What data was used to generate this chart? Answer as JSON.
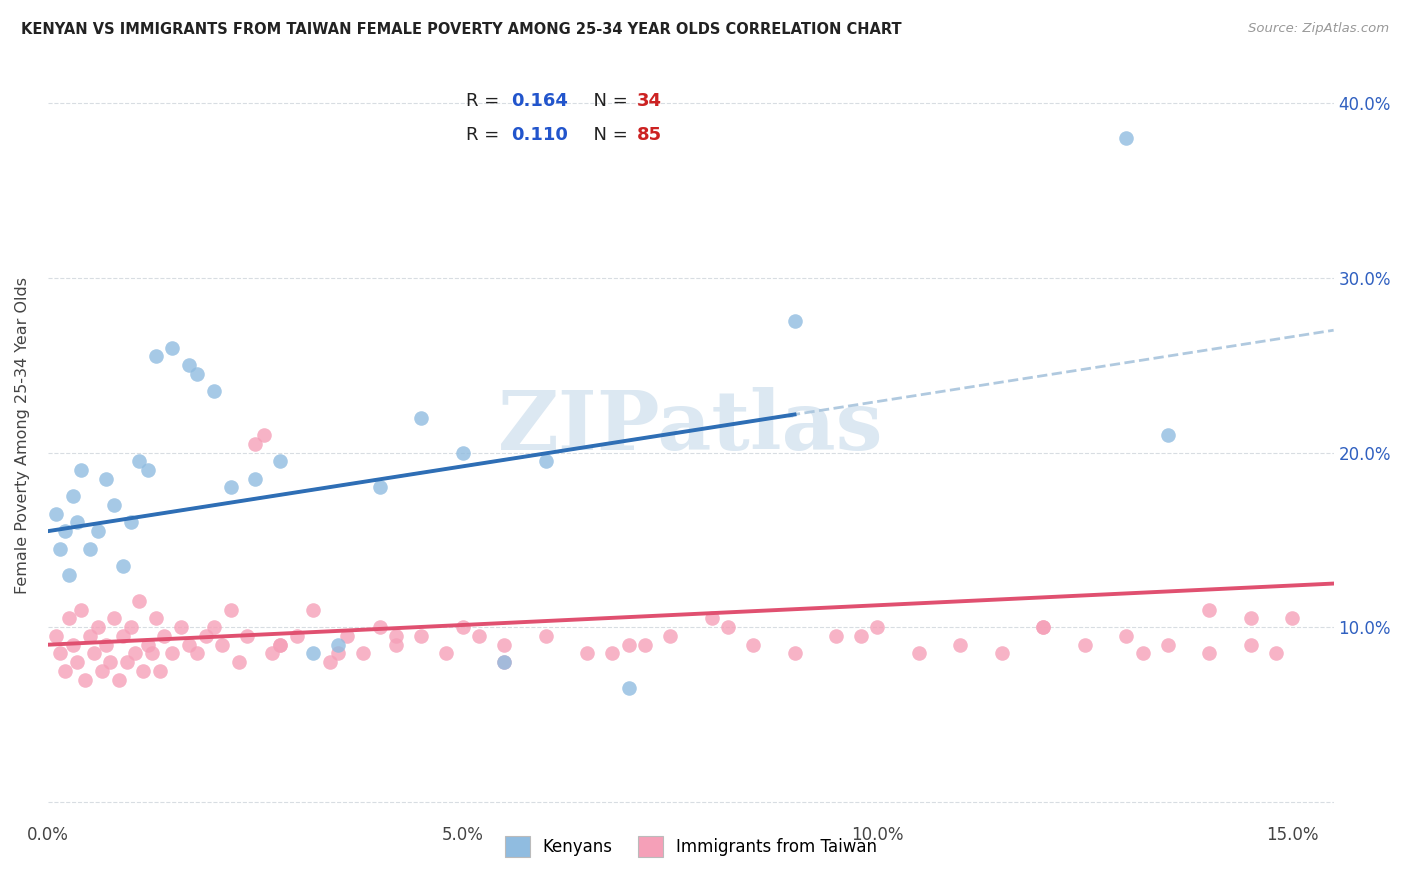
{
  "title": "KENYAN VS IMMIGRANTS FROM TAIWAN FEMALE POVERTY AMONG 25-34 YEAR OLDS CORRELATION CHART",
  "source_text": "Source: ZipAtlas.com",
  "ylabel": "Female Poverty Among 25-34 Year Olds",
  "xlim": [
    0.0,
    15.5
  ],
  "ylim": [
    -1.0,
    43.0
  ],
  "xticks": [
    0.0,
    5.0,
    10.0,
    15.0
  ],
  "yticks": [
    0.0,
    10.0,
    20.0,
    30.0,
    40.0
  ],
  "xtick_labels": [
    "0.0%",
    "5.0%",
    "10.0%",
    "15.0%"
  ],
  "ytick_labels_right": [
    "",
    "10.0%",
    "20.0%",
    "30.0%",
    "40.0%"
  ],
  "blue_dot_color": "#90bce0",
  "pink_dot_color": "#f5a0b8",
  "blue_line_color": "#2e6eb5",
  "pink_line_color": "#e05070",
  "blue_dash_color": "#a8c4dc",
  "grid_color": "#d8dde2",
  "bg_color": "#ffffff",
  "legend_frame_color": "#cccccc",
  "watermark_color": "#dce8f2",
  "axis_tick_color": "#3060c0",
  "title_color": "#222222",
  "R_color": "#2255cc",
  "N_color": "#cc2222",
  "legend1_label": "Kenyans",
  "legend2_label": "Immigrants from Taiwan",
  "watermark": "ZIPatlas",
  "kenyan_x": [
    0.1,
    0.15,
    0.2,
    0.25,
    0.3,
    0.35,
    0.4,
    0.5,
    0.6,
    0.7,
    0.8,
    0.9,
    1.0,
    1.1,
    1.2,
    1.3,
    1.5,
    1.7,
    1.8,
    2.0,
    2.2,
    2.5,
    2.8,
    3.2,
    3.5,
    4.0,
    4.5,
    5.0,
    5.5,
    6.0,
    7.0,
    9.0,
    13.0,
    13.5
  ],
  "kenyan_y": [
    16.5,
    14.5,
    15.5,
    13.0,
    17.5,
    16.0,
    19.0,
    14.5,
    15.5,
    18.5,
    17.0,
    13.5,
    16.0,
    19.5,
    19.0,
    25.5,
    26.0,
    25.0,
    24.5,
    23.5,
    18.0,
    18.5,
    19.5,
    8.5,
    9.0,
    18.0,
    22.0,
    20.0,
    8.0,
    19.5,
    6.5,
    27.5,
    38.0,
    21.0
  ],
  "taiwan_x": [
    0.1,
    0.15,
    0.2,
    0.25,
    0.3,
    0.35,
    0.4,
    0.45,
    0.5,
    0.55,
    0.6,
    0.65,
    0.7,
    0.75,
    0.8,
    0.85,
    0.9,
    0.95,
    1.0,
    1.05,
    1.1,
    1.15,
    1.2,
    1.25,
    1.3,
    1.35,
    1.4,
    1.5,
    1.6,
    1.7,
    1.8,
    1.9,
    2.0,
    2.1,
    2.2,
    2.3,
    2.4,
    2.5,
    2.6,
    2.7,
    2.8,
    3.0,
    3.2,
    3.4,
    3.6,
    3.8,
    4.0,
    4.2,
    4.5,
    4.8,
    5.0,
    5.2,
    5.5,
    6.0,
    6.5,
    7.0,
    7.5,
    8.0,
    8.5,
    9.0,
    9.5,
    10.0,
    11.0,
    11.5,
    12.0,
    13.0,
    13.2,
    13.5,
    14.0,
    14.5,
    14.8,
    15.0,
    2.8,
    3.5,
    4.2,
    5.5,
    6.8,
    7.2,
    8.2,
    9.8,
    10.5,
    12.0,
    12.5,
    14.0,
    14.5
  ],
  "taiwan_y": [
    9.5,
    8.5,
    7.5,
    10.5,
    9.0,
    8.0,
    11.0,
    7.0,
    9.5,
    8.5,
    10.0,
    7.5,
    9.0,
    8.0,
    10.5,
    7.0,
    9.5,
    8.0,
    10.0,
    8.5,
    11.5,
    7.5,
    9.0,
    8.5,
    10.5,
    7.5,
    9.5,
    8.5,
    10.0,
    9.0,
    8.5,
    9.5,
    10.0,
    9.0,
    11.0,
    8.0,
    9.5,
    20.5,
    21.0,
    8.5,
    9.0,
    9.5,
    11.0,
    8.0,
    9.5,
    8.5,
    10.0,
    9.0,
    9.5,
    8.5,
    10.0,
    9.5,
    8.0,
    9.5,
    8.5,
    9.0,
    9.5,
    10.5,
    9.0,
    8.5,
    9.5,
    10.0,
    9.0,
    8.5,
    10.0,
    9.5,
    8.5,
    9.0,
    8.5,
    9.0,
    8.5,
    10.5,
    9.0,
    8.5,
    9.5,
    9.0,
    8.5,
    9.0,
    10.0,
    9.5,
    8.5,
    10.0,
    9.0,
    11.0,
    10.5
  ]
}
